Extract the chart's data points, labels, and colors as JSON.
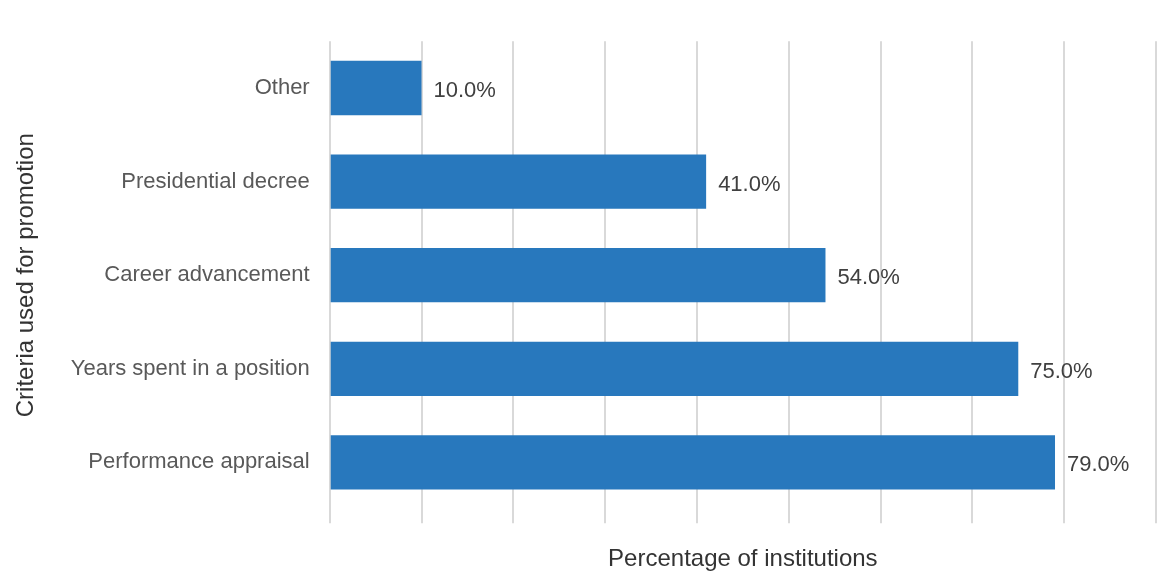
{
  "chart_data": {
    "type": "bar",
    "orientation": "horizontal",
    "xlabel": "Percentage of institutions",
    "ylabel": "Criteria used for promotion",
    "categories": [
      "Other",
      "Presidential decree",
      "Career advancement",
      "Years spent in a position",
      "Performance appraisal"
    ],
    "values": [
      10,
      41,
      54,
      75,
      79
    ],
    "value_labels": [
      "10.0%",
      "41.0%",
      "54.0%",
      "75.0%",
      "79.0%"
    ],
    "color": "#2878bd",
    "xlim": [
      0,
      90
    ],
    "xticks": [
      {
        "value": 0,
        "label": null
      },
      {
        "value": 10,
        "label": null
      },
      {
        "value": 20,
        "label": null
      },
      {
        "value": 30,
        "label": null
      },
      {
        "value": 40,
        "label": null
      },
      {
        "value": 50,
        "label": null
      },
      {
        "value": 60,
        "label": null
      },
      {
        "value": 70,
        "label": null
      },
      {
        "value": 80,
        "label": null
      },
      {
        "value": 90,
        "label": null
      }
    ],
    "grid": "x",
    "tick_labels": "y",
    "legend": false
  }
}
